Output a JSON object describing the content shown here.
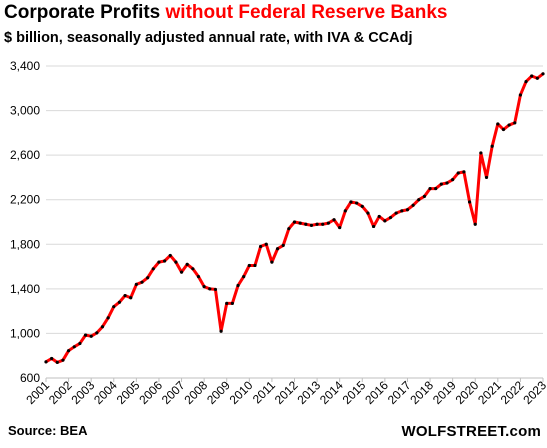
{
  "title": {
    "part1": "Corporate Profits",
    "part2": "without Federal Reserve Banks"
  },
  "subtitle": "$ billion, seasonally adjusted annual rate, with IVA & CCAdj",
  "source": "Source: BEA",
  "brand": "WOLFSTREET.com",
  "colors": {
    "line": "#ff0000",
    "marker": "#000000",
    "title_accent": "#ff0000",
    "grid": "#d9d9d9"
  },
  "chart_data": {
    "type": "line",
    "frequency": "quarterly",
    "ylim": [
      600,
      3400
    ],
    "yticks": [
      600,
      1000,
      1400,
      1800,
      2200,
      2600,
      3000,
      3400
    ],
    "ytick_labels": [
      "600",
      "1,000",
      "1,400",
      "1,800",
      "2,200",
      "2,600",
      "3,000",
      "3,400"
    ],
    "xtick_labels": [
      "2001",
      "2002",
      "2003",
      "2004",
      "2005",
      "2006",
      "2007",
      "2008",
      "2009",
      "2010",
      "2011",
      "2012",
      "2013",
      "2014",
      "2015",
      "2016",
      "2017",
      "2018",
      "2019",
      "2020",
      "2021",
      "2022",
      "2023"
    ],
    "grid": "horizontal",
    "legend": "none",
    "series": [
      {
        "start": "2001-Q1",
        "values": [
          745,
          775,
          740,
          760,
          845,
          880,
          910,
          985,
          975,
          1005,
          1060,
          1140,
          1240,
          1280,
          1340,
          1320,
          1440,
          1460,
          1500,
          1580,
          1640,
          1650,
          1700,
          1640,
          1550,
          1620,
          1580,
          1510,
          1420,
          1400,
          1395,
          1020,
          1270,
          1270,
          1430,
          1510,
          1610,
          1610,
          1780,
          1800,
          1640,
          1760,
          1790,
          1940,
          2000,
          1990,
          1980,
          1970,
          1980,
          1980,
          1990,
          2020,
          1950,
          2100,
          2180,
          2170,
          2140,
          2080,
          1960,
          2050,
          2010,
          2040,
          2080,
          2100,
          2110,
          2150,
          2200,
          2230,
          2300,
          2300,
          2340,
          2350,
          2380,
          2440,
          2450,
          2180,
          1980,
          2620,
          2400,
          2680,
          2880,
          2830,
          2870,
          2890,
          3140,
          3260,
          3310,
          3290,
          3330
        ]
      }
    ]
  }
}
